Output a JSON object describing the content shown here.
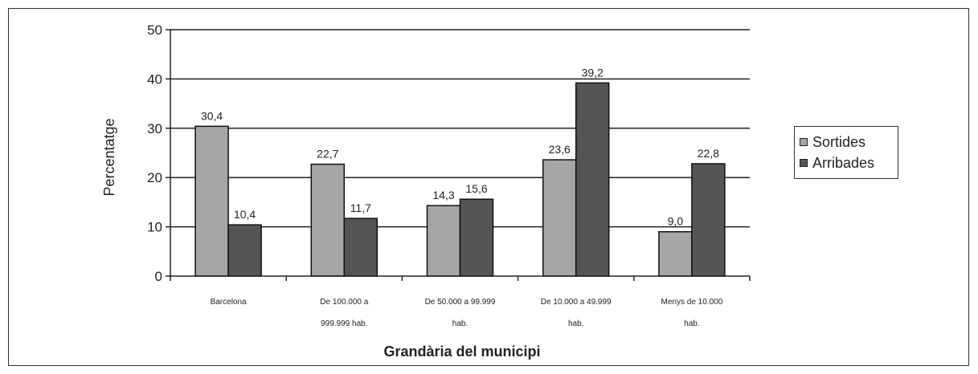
{
  "chart_data": {
    "type": "bar",
    "title": "",
    "xlabel": "Grandària del municipi",
    "ylabel": "Percentatge",
    "ylim": [
      0,
      50
    ],
    "yticks": [
      0,
      10,
      20,
      30,
      40,
      50
    ],
    "grid": true,
    "legend_position": "right",
    "categories": [
      [
        "Barcelona"
      ],
      [
        "De 100.000 a",
        "999.999 hab."
      ],
      [
        "De 50.000 a 99.999",
        "hab."
      ],
      [
        "De 10.000 a 49.999",
        "hab."
      ],
      [
        "Menys de 10.000",
        "hab."
      ]
    ],
    "series": [
      {
        "name": "Sortides",
        "color": "#a6a6a6",
        "values": [
          30.4,
          22.7,
          14.3,
          23.6,
          9.0
        ],
        "labels": [
          "30,4",
          "22,7",
          "14,3",
          "23,6",
          "9,0"
        ]
      },
      {
        "name": "Arribades",
        "color": "#555555",
        "values": [
          10.4,
          11.7,
          15.6,
          39.2,
          22.8
        ],
        "labels": [
          "10,4",
          "11,7",
          "15,6",
          "39,2",
          "22,8"
        ]
      }
    ]
  }
}
